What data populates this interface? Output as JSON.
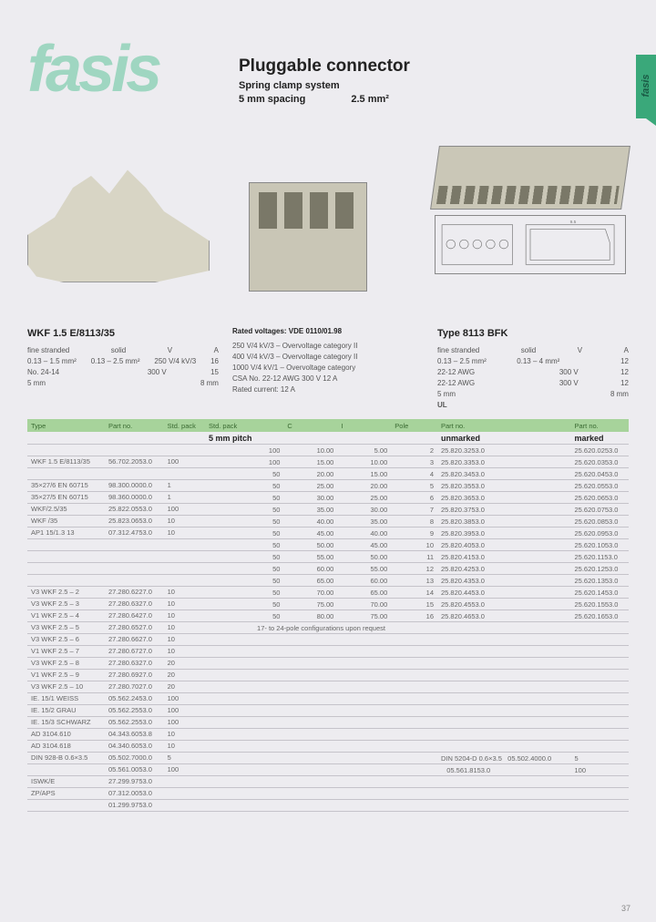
{
  "brand": "fasis",
  "side_label": "fasis",
  "page_number": "37",
  "header": {
    "title": "Pluggable connector",
    "subtitle": "Spring clamp system",
    "spacing": "5 mm spacing",
    "area": "2.5 mm²"
  },
  "spec_left": {
    "title": "WKF 1.5 E/8113/35",
    "rows": [
      [
        "fine stranded",
        "solid",
        "V",
        "A"
      ],
      [
        "0.13 – 1.5 mm²",
        "0.13 – 2.5 mm²",
        "250 V/4 kV/3",
        "16"
      ],
      [
        "No. 24-14",
        "",
        "300 V",
        "15"
      ],
      [
        "5 mm",
        "",
        "",
        "8 mm"
      ]
    ]
  },
  "spec_mid": {
    "title_line": "Rated voltages: VDE 0110/01.98",
    "rows": [
      "250 V/4 kV/3 – Overvoltage category II",
      "400 V/4 kV/3 – Overvoltage category II",
      "1000 V/4 kV/1 – Overvoltage category",
      "CSA No. 22-12 AWG          300 V    12 A",
      "Rated current: 12 A"
    ]
  },
  "spec_right": {
    "title": "Type 8113 BFK",
    "rows": [
      [
        "fine stranded",
        "solid",
        "V",
        "A"
      ],
      [
        "0.13 – 2.5 mm²",
        "0.13 – 4 mm²",
        "",
        "12"
      ],
      [
        "22-12 AWG",
        "",
        "300 V",
        "12"
      ],
      [
        "22-12 AWG",
        "",
        "300 V",
        "12"
      ],
      [
        "5 mm",
        "",
        "",
        "8 mm"
      ]
    ],
    "ul": "UL"
  },
  "table_left": {
    "headers": [
      "Type",
      "Part no.",
      "Std. pack"
    ],
    "rows": [
      [
        "",
        "",
        ""
      ],
      [
        "",
        "",
        ""
      ],
      [
        "WKF 1.5 E/8113/35",
        "56.702.2053.0",
        "100"
      ],
      [
        "",
        "",
        ""
      ],
      [
        "35×27/6 EN 60715",
        "98.300.0000.0",
        "1"
      ],
      [
        "35×27/5 EN 60715",
        "98.360.0000.0",
        "1"
      ],
      [
        "WKF/2.5/35",
        "25.822.0553.0",
        "100"
      ],
      [
        "WKF /35",
        "25.823.0653.0",
        "10"
      ],
      [
        "AP1 15/1.3 13",
        "07.312.4753.0",
        "10"
      ],
      [
        "",
        "",
        ""
      ],
      [
        "",
        "",
        ""
      ],
      [
        "",
        "",
        ""
      ],
      [
        "",
        "",
        ""
      ],
      [
        "V3 WKF 2.5 – 2",
        "27.280.6227.0",
        "10"
      ],
      [
        "V3 WKF 2.5 – 3",
        "27.280.6327.0",
        "10"
      ],
      [
        "V1 WKF 2.5 – 4",
        "27.280.6427.0",
        "10"
      ],
      [
        "V3 WKF 2.5 – 5",
        "27.280.6527.0",
        "10"
      ],
      [
        "V3 WKF 2.5 – 6",
        "27.280.6627.0",
        "10"
      ],
      [
        "V1 WKF 2.5 – 7",
        "27.280.6727.0",
        "10"
      ],
      [
        "V3 WKF 2.5 – 8",
        "27.280.6327.0",
        "20"
      ],
      [
        "V1 WKF 2.5 – 9",
        "27.280.6927.0",
        "20"
      ],
      [
        "V3 WKF 2.5 – 10",
        "27.280.7027.0",
        "20"
      ],
      [
        "IE. 15/1 WEISS",
        "05.562.2453.0",
        "100"
      ],
      [
        "IE. 15/2 GRAU",
        "05.562.2553.0",
        "100"
      ],
      [
        "IE. 15/3 SCHWARZ",
        "05.562.2553.0",
        "100"
      ],
      [
        "AD 3104.610",
        "04.343.6053.8",
        "10"
      ],
      [
        "AD 3104.618",
        "04.340.6053.0",
        "10"
      ],
      [
        "DIN 928-B 0.6×3.5",
        "05.502.7000.0",
        "5"
      ],
      [
        "",
        "05.561.0053.0",
        "100"
      ],
      [
        "ISWK/E",
        "27.299.9753.0",
        ""
      ],
      [
        "ZP/APS",
        "07.312.0053.0",
        ""
      ],
      [
        "",
        "01.299.9753.0",
        ""
      ]
    ]
  },
  "table_mid": {
    "headers": [
      "Std. pack",
      "C",
      "I",
      "Pole"
    ],
    "section": "5 mm pitch",
    "rows": [
      [
        "100",
        "10.00",
        "5.00",
        "2"
      ],
      [
        "100",
        "15.00",
        "10.00",
        "3"
      ],
      [
        "50",
        "20.00",
        "15.00",
        "4"
      ],
      [
        "50",
        "25.00",
        "20.00",
        "5"
      ],
      [
        "50",
        "30.00",
        "25.00",
        "6"
      ],
      [
        "50",
        "35.00",
        "30.00",
        "7"
      ],
      [
        "50",
        "40.00",
        "35.00",
        "8"
      ],
      [
        "50",
        "45.00",
        "40.00",
        "9"
      ],
      [
        "50",
        "50.00",
        "45.00",
        "10"
      ],
      [
        "50",
        "55.00",
        "50.00",
        "11"
      ],
      [
        "50",
        "60.00",
        "55.00",
        "12"
      ],
      [
        "50",
        "65.00",
        "60.00",
        "13"
      ],
      [
        "50",
        "70.00",
        "65.00",
        "14"
      ],
      [
        "50",
        "75.00",
        "70.00",
        "15"
      ],
      [
        "50",
        "80.00",
        "75.00",
        "16"
      ]
    ],
    "note": "17- to 24-pole configurations upon request"
  },
  "table_right": {
    "headers": [
      "Part no.",
      "Part no."
    ],
    "sub": [
      "unmarked",
      "marked"
    ],
    "rows": [
      [
        "25.820.3253.0",
        "25.620.0253.0"
      ],
      [
        "25.820.3353.0",
        "25.620.0353.0"
      ],
      [
        "25.820.3453.0",
        "25.620.0453.0"
      ],
      [
        "25.820.3553.0",
        "25.620.0553.0"
      ],
      [
        "25.820.3653.0",
        "25.620.0653.0"
      ],
      [
        "25.820.3753.0",
        "25.620.0753.0"
      ],
      [
        "25.820.3853.0",
        "25.620.0853.0"
      ],
      [
        "25.820.3953.0",
        "25.620.0953.0"
      ],
      [
        "25.820.4053.0",
        "25.620.1053.0"
      ],
      [
        "25.820.4153.0",
        "25.620.1153.0"
      ],
      [
        "25.820.4253.0",
        "25.620.1253.0"
      ],
      [
        "25.820.4353.0",
        "25.620.1353.0"
      ],
      [
        "25.820.4453.0",
        "25.620.1453.0"
      ],
      [
        "25.820.4553.0",
        "25.620.1553.0"
      ],
      [
        "25.820.4653.0",
        "25.620.1653.0"
      ]
    ],
    "tool": [
      "DIN 5204-D 0.6×3.5",
      "05.502.4000.0",
      "5"
    ],
    "tool2": [
      "",
      "05.561.8153.0",
      "100"
    ]
  },
  "colors": {
    "bg": "#edecf0",
    "accent": "#3aa87a",
    "logo": "#9fd6c1",
    "table_header": "#a7d39b",
    "grid": "#c5c3ca"
  }
}
